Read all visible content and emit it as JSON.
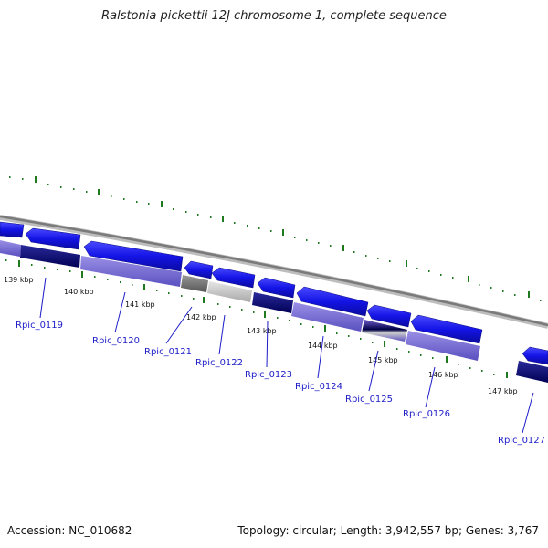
{
  "title": "Ralstonia pickettii 12J chromosome 1, complete sequence",
  "footer": {
    "accession": "Accession: NC_010682",
    "summary": "Topology: circular; Length: 3,942,557 bp; Genes: 3,767"
  },
  "colors": {
    "backbone": "#8c8c8c",
    "tick": "#1f7a1f",
    "strand_forward": "#1414e6",
    "label": "#1c1cc8"
  },
  "kbp_labels": [
    "139 kbp",
    "140 kbp",
    "141 kbp",
    "142 kbp",
    "143 kbp",
    "144 kbp",
    "145 kbp",
    "146 kbp",
    "147 kbp"
  ],
  "genes": [
    "Rpic_0119",
    "Rpic_0120",
    "Rpic_0121",
    "Rpic_0122",
    "Rpic_0123",
    "Rpic_0124",
    "Rpic_0125",
    "Rpic_0126",
    "Rpic_0127"
  ]
}
